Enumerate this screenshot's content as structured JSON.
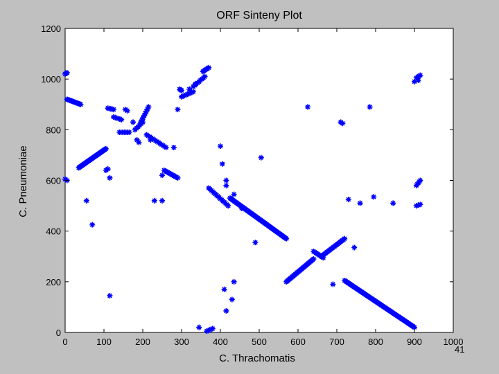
{
  "page": {
    "slide_number": "41",
    "background": "#c0c0c0",
    "marker_color": "#0000ff"
  },
  "chart_data": {
    "type": "scatter",
    "title": "ORF Sinteny Plot",
    "xlabel": "C. Thrachomatis",
    "ylabel": "C. Pneumoniae",
    "xlim": [
      0,
      1000
    ],
    "ylim": [
      0,
      1200
    ],
    "xticks": [
      0,
      100,
      200,
      300,
      400,
      500,
      600,
      700,
      800,
      900,
      1000
    ],
    "yticks": [
      0,
      200,
      400,
      600,
      800,
      1000,
      1200
    ],
    "marker": "*",
    "grid": false,
    "segments": [
      {
        "from": [
          0,
          1020
        ],
        "to": [
          5,
          1025
        ],
        "n": 3
      },
      {
        "from": [
          5,
          920
        ],
        "to": [
          40,
          900
        ],
        "n": 14
      },
      {
        "from": [
          35,
          650
        ],
        "to": [
          105,
          725
        ],
        "n": 30
      },
      {
        "from": [
          110,
          885
        ],
        "to": [
          125,
          880
        ],
        "n": 5
      },
      {
        "from": [
          125,
          850
        ],
        "to": [
          145,
          840
        ],
        "n": 6
      },
      {
        "from": [
          140,
          790
        ],
        "to": [
          165,
          790
        ],
        "n": 7
      },
      {
        "from": [
          180,
          800
        ],
        "to": [
          200,
          830
        ],
        "n": 6
      },
      {
        "from": [
          195,
          830
        ],
        "to": [
          215,
          890
        ],
        "n": 8
      },
      {
        "from": [
          210,
          780
        ],
        "to": [
          260,
          730
        ],
        "n": 14
      },
      {
        "from": [
          255,
          640
        ],
        "to": [
          290,
          610
        ],
        "n": 12
      },
      {
        "from": [
          295,
          960
        ],
        "to": [
          300,
          955
        ],
        "n": 3
      },
      {
        "from": [
          300,
          930
        ],
        "to": [
          330,
          950
        ],
        "n": 9
      },
      {
        "from": [
          330,
          970
        ],
        "to": [
          360,
          1010
        ],
        "n": 9
      },
      {
        "from": [
          355,
          1030
        ],
        "to": [
          370,
          1045
        ],
        "n": 6
      },
      {
        "from": [
          370,
          570
        ],
        "to": [
          420,
          500
        ],
        "n": 16
      },
      {
        "from": [
          425,
          530
        ],
        "to": [
          570,
          370
        ],
        "n": 56
      },
      {
        "from": [
          570,
          200
        ],
        "to": [
          640,
          290
        ],
        "n": 28
      },
      {
        "from": [
          640,
          320
        ],
        "to": [
          665,
          295
        ],
        "n": 9
      },
      {
        "from": [
          660,
          300
        ],
        "to": [
          720,
          370
        ],
        "n": 22
      },
      {
        "from": [
          720,
          205
        ],
        "to": [
          900,
          20
        ],
        "n": 66
      },
      {
        "from": [
          365,
          5
        ],
        "to": [
          380,
          15
        ],
        "n": 5
      },
      {
        "from": [
          905,
          580
        ],
        "to": [
          915,
          600
        ],
        "n": 5
      },
      {
        "from": [
          905,
          1005
        ],
        "to": [
          915,
          1015
        ],
        "n": 4
      },
      {
        "from": [
          905,
          500
        ],
        "to": [
          915,
          505
        ],
        "n": 3
      }
    ],
    "points": [
      [
        0,
        605
      ],
      [
        5,
        600
      ],
      [
        55,
        520
      ],
      [
        70,
        425
      ],
      [
        105,
        640
      ],
      [
        110,
        645
      ],
      [
        115,
        610
      ],
      [
        115,
        145
      ],
      [
        155,
        880
      ],
      [
        160,
        875
      ],
      [
        175,
        830
      ],
      [
        185,
        760
      ],
      [
        190,
        750
      ],
      [
        220,
        760
      ],
      [
        230,
        520
      ],
      [
        250,
        520
      ],
      [
        250,
        620
      ],
      [
        280,
        730
      ],
      [
        290,
        880
      ],
      [
        320,
        960
      ],
      [
        335,
        980
      ],
      [
        345,
        20
      ],
      [
        400,
        735
      ],
      [
        405,
        665
      ],
      [
        415,
        600
      ],
      [
        415,
        580
      ],
      [
        410,
        170
      ],
      [
        415,
        85
      ],
      [
        430,
        130
      ],
      [
        435,
        200
      ],
      [
        435,
        545
      ],
      [
        455,
        490
      ],
      [
        490,
        355
      ],
      [
        505,
        690
      ],
      [
        625,
        890
      ],
      [
        690,
        190
      ],
      [
        710,
        830
      ],
      [
        715,
        825
      ],
      [
        730,
        525
      ],
      [
        745,
        335
      ],
      [
        760,
        510
      ],
      [
        785,
        890
      ],
      [
        795,
        535
      ],
      [
        845,
        510
      ],
      [
        900,
        990
      ],
      [
        910,
        995
      ]
    ]
  }
}
